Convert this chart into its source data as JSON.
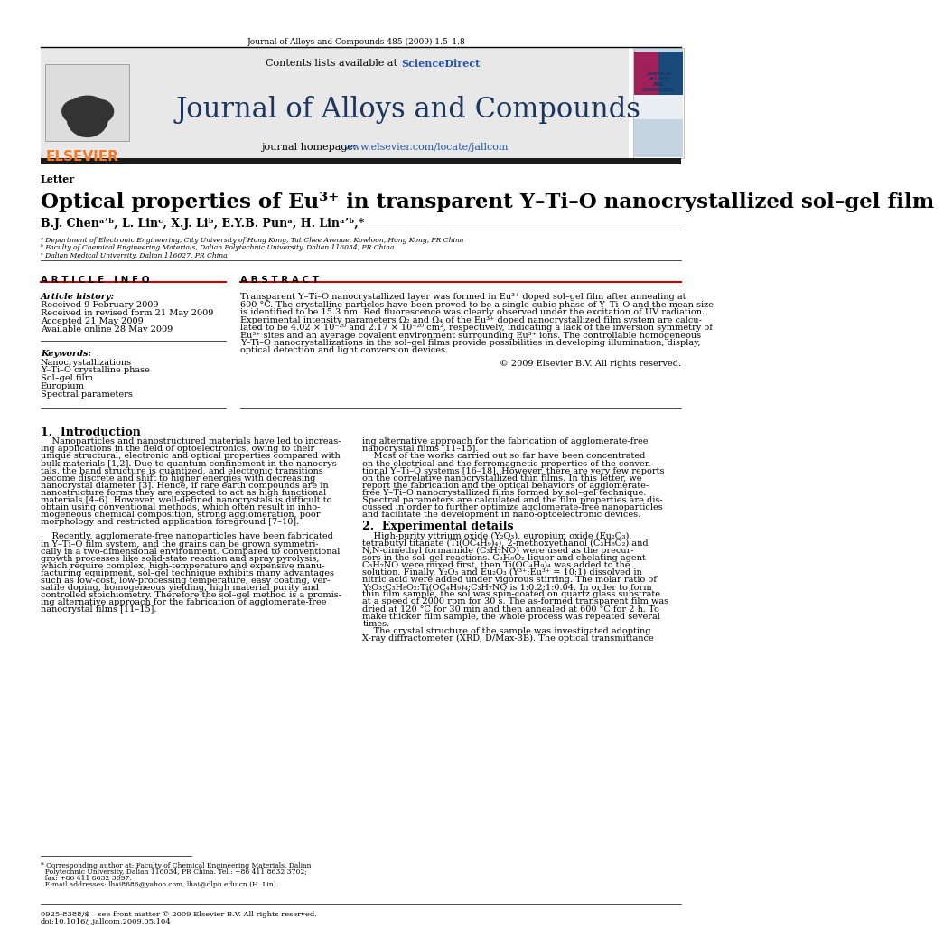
{
  "page_title_top": "Journal of Alloys and Compounds 485 (2009) 1.5–1.8",
  "journal_name": "Journal of Alloys and Compounds",
  "contents_text_plain": "Contents lists available at ",
  "contents_sciencedirect": "ScienceDirect",
  "homepage_plain": "journal homepage: ",
  "homepage_link": "www.elsevier.com/locate/jallcom",
  "section_label": "Letter",
  "paper_title": "Optical properties of Eu³⁺ in transparent Y–Ti–O nanocrystallized sol–gel film",
  "authors_text": "B.J. Chenᵃ’ᵇ, L. Linᶜ, X.J. Liᵇ, E.Y.B. Punᵃ, H. Linᵃ’ᵇ,*",
  "affiliation_a": "ᵃ Department of Electronic Engineering, City University of Hong Kong, Tat Chee Avenue, Kowloon, Hong Kong, PR China",
  "affiliation_b": "ᵇ Faculty of Chemical Engineering Materials, Dalian Polytechnic University, Dalian 116034, PR China",
  "affiliation_c": "ᶜ Dalian Medical University, Dalian 116027, PR China",
  "article_info_header": "A R T I C L E   I N F O",
  "abstract_header": "A B S T R A C T",
  "article_history_label": "Article history:",
  "article_history": [
    "Received 9 February 2009",
    "Received in revised form 21 May 2009",
    "Accepted 21 May 2009",
    "Available online 28 May 2009"
  ],
  "keywords_label": "Keywords:",
  "keywords": [
    "Nanocrystallizations",
    "Y–Ti–O crystalline phase",
    "Sol–gel film",
    "Europium",
    "Spectral parameters"
  ],
  "abstract_lines": [
    "Transparent Y–Ti–O nanocrystallized layer was formed in Eu³⁺ doped sol–gel film after annealing at",
    "600 °C. The crystalline particles have been proved to be a single cubic phase of Y–Ti–O and the mean size",
    "is identified to be 15.3 nm. Red fluorescence was clearly observed under the excitation of UV radiation.",
    "Experimental intensity parameters Ω₂ and Ω₄ of the Eu³⁺ doped nanocrystallized film system are calcu-",
    "lated to be 4.02 × 10⁻²⁰ and 2.17 × 10⁻²⁰ cm², respectively, indicating a lack of the inversion symmetry of",
    "Eu³⁺ sites and an average covalent environment surrounding Eu³⁺ ions. The controllable homogeneous",
    "Y–Ti–O nanocrystallizations in the sol–gel films provide possibilities in developing illumination, display,",
    "optical detection and light conversion devices."
  ],
  "copyright_text": "© 2009 Elsevier B.V. All rights reserved.",
  "section1_title": "1.  Introduction",
  "intro_col1_lines": [
    "    Nanoparticles and nanostructured materials have led to increas-",
    "ing applications in the field of optoelectronics, owing to their",
    "unique structural, electronic and optical properties compared with",
    "bulk materials [1,2]. Due to quantum confinement in the nanocrys-",
    "tals, the band structure is quantized, and electronic transitions",
    "become discrete and shift to higher energies with decreasing",
    "nanocrystal diameter [3]. Hence, if rare earth compounds are in",
    "nanostructure forms they are expected to act as high functional",
    "materials [4–6]. However, well-defined nanocrystals is difficult to",
    "obtain using conventional methods, which often result in inho-",
    "mogeneous chemical composition, strong agglomeration, poor",
    "morphology and restricted application foreground [7–10].",
    "",
    "    Recently, agglomerate-free nanoparticles have been fabricated",
    "in Y–Ti–O film system, and the grains can be grown symmetri-",
    "cally in a two-dimensional environment. Compared to conventional",
    "growth processes like solid-state reaction and spray pyrolysis,",
    "which require complex, high-temperature and expensive manu-",
    "facturing equipment, sol–gel technique exhibits many advantages",
    "such as low-cost, low-processing temperature, easy coating, ver-",
    "satile doping, homogeneous yielding, high material purity and",
    "controlled stoichiometry. Therefore the sol–gel method is a promis-",
    "ing alternative approach for the fabrication of agglomerate-free",
    "nanocrystal films [11–15]."
  ],
  "intro_col2_lines": [
    "ing alternative approach for the fabrication of agglomerate-free",
    "nanocrystal films [11–15].",
    "    Most of the works carried out so far have been concentrated",
    "on the electrical and the ferromagnetic properties of the conven-",
    "tional Y–Ti–O systems [16–18]. However, there are very few reports",
    "on the correlative nanocrystallized thin films. In this letter, we",
    "report the fabrication and the optical behaviors of agglomerate-",
    "free Y–Ti–O nanocrystallized films formed by sol–gel technique.",
    "Spectral parameters are calculated and the film properties are dis-",
    "cussed in order to further optimize agglomerate-free nanoparticles",
    "and facilitate the development in nano-optoelectronic devices."
  ],
  "section2_title": "2.  Experimental details",
  "exp_col2_lines": [
    "    High-purity yttrium oxide (Y₂O₃), europium oxide (Eu₂O₃),",
    "tetrabutyl titanate (Ti(OC₄H₉)₄), 2-methoxyethanol (C₃H₈O₂) and",
    "N,N-dimethyl formamide (C₃H₇NO) were used as the precur-",
    "sors in the sol–gel reactions. C₃H₈O₂ liquor and chelating agent",
    "C₃H₇NO were mixed first, then Ti(OC₄H₉)₄ was added to the",
    "solution. Finally, Y₂O₃ and Eu₂O₃ (Y³⁺:Eu³⁺ = 10:1) dissolved in",
    "nitric acid were added under vigorous stirring. The molar ratio of",
    "Y₂O₃:C₃H₈O₂:Ti(OC₄H₉)₄:C₃H₇NO is 1:0.2:1:0.04. In order to form",
    "thin film sample, the sol was spin-coated on quartz glass substrate",
    "at a speed of 2000 rpm for 30 s. The as-formed transparent film was",
    "dried at 120 °C for 30 min and then annealed at 600 °C for 2 h. To",
    "make thicker film sample, the whole process was repeated several",
    "times.",
    "    The crystal structure of the sample was investigated adopting",
    "X-ray diffractometer (XRD, D/Max-3B). The optical transmittance"
  ],
  "footnote_line1": "* Corresponding author at: Faculty of Chemical Engineering Materials, Dalian",
  "footnote_line2": "  Polytechnic University, Dalian 116034, PR China. Tel.: +86 411 8632 3702;",
  "footnote_line3": "  fax: +86 411 8632 3097.",
  "footnote_line4": "  E-mail addresses: lhai8686@yahoo.com, lhai@dlpu.edu.cn (H. Lin).",
  "bottom_line1": "0925-8388/$ – see front matter © 2009 Elsevier B.V. All rights reserved.",
  "bottom_line2": "doi:10.1016/j.jallcom.2009.05.104",
  "bg_color": "#ffffff",
  "gray_bg": "#e8e8e8",
  "link_color": "#2255aa",
  "elsevier_orange": "#f47920",
  "dark_bar": "#1a1a1a",
  "red_line": "#cc0000",
  "journal_title_color": "#1a3560"
}
